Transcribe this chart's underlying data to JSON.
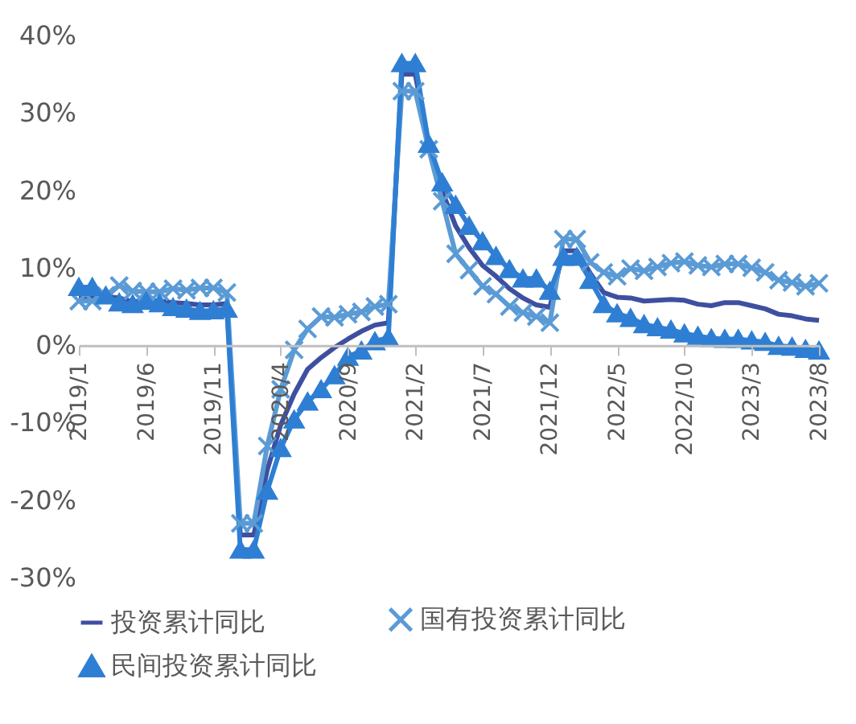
{
  "chart_data": {
    "type": "line",
    "categories": [
      "2019/1",
      null,
      null,
      null,
      null,
      "2019/6",
      null,
      null,
      null,
      null,
      "2019/11",
      null,
      null,
      null,
      null,
      "2020/4",
      null,
      null,
      null,
      null,
      "2020/9",
      null,
      null,
      null,
      null,
      "2021/2",
      null,
      null,
      null,
      null,
      "2021/7",
      null,
      null,
      null,
      null,
      "2021/12",
      null,
      null,
      null,
      null,
      "2022/5",
      null,
      null,
      null,
      null,
      "2022/10",
      null,
      null,
      null,
      null,
      "2023/3",
      null,
      null,
      null,
      null,
      "2023/8"
    ],
    "series": [
      {
        "name": "投资累计同比",
        "color": "#3f4fa0",
        "marker": "none",
        "values": [
          6.1,
          6.1,
          6.3,
          6.1,
          5.6,
          5.8,
          5.7,
          5.5,
          5.4,
          5.2,
          5.2,
          5.4,
          -24.5,
          -24.5,
          -16.1,
          -10.3,
          -6.3,
          -3.1,
          -1.6,
          -0.3,
          0.8,
          1.8,
          2.6,
          2.9,
          35.0,
          35.0,
          25.6,
          19.9,
          15.4,
          12.6,
          10.3,
          8.9,
          7.3,
          6.1,
          5.2,
          4.9,
          12.2,
          12.2,
          9.3,
          6.8,
          6.2,
          6.1,
          5.7,
          5.8,
          5.9,
          5.8,
          5.3,
          5.1,
          5.5,
          5.5,
          5.1,
          4.7,
          4.0,
          3.8,
          3.4,
          3.2
        ]
      },
      {
        "name": "国有投资累计同比",
        "color": "#5b9bd5",
        "marker": "cross",
        "values": [
          5.7,
          5.7,
          6.4,
          7.7,
          7.0,
          6.9,
          6.9,
          7.3,
          7.1,
          7.4,
          7.4,
          6.8,
          -23.0,
          -23.0,
          -13.0,
          -5.7,
          -0.6,
          2.1,
          3.7,
          3.6,
          4.0,
          4.3,
          5.0,
          5.3,
          32.8,
          32.8,
          25.3,
          18.6,
          11.8,
          9.7,
          7.6,
          6.6,
          5.0,
          4.2,
          3.7,
          2.9,
          13.7,
          13.7,
          10.7,
          9.4,
          8.9,
          9.9,
          9.6,
          10.1,
          10.6,
          10.8,
          10.3,
          10.1,
          10.5,
          10.5,
          10.0,
          9.4,
          8.4,
          8.1,
          7.6,
          8.0
        ]
      },
      {
        "name": "民间投资累计同比",
        "color": "#2e7fd4",
        "marker": "triangle",
        "values": [
          7.5,
          7.5,
          6.4,
          5.5,
          5.3,
          5.7,
          5.4,
          4.9,
          4.7,
          4.4,
          4.5,
          4.7,
          -26.4,
          -26.4,
          -18.8,
          -13.3,
          -9.6,
          -7.3,
          -5.7,
          -3.9,
          -1.5,
          -0.7,
          0.5,
          1.0,
          36.4,
          36.4,
          26.0,
          21.0,
          18.1,
          15.4,
          13.4,
          11.5,
          9.8,
          8.6,
          8.6,
          7.0,
          11.4,
          11.4,
          8.4,
          5.3,
          4.1,
          3.5,
          2.7,
          2.3,
          2.0,
          1.5,
          1.2,
          0.9,
          0.8,
          0.8,
          0.6,
          0.4,
          -0.1,
          -0.2,
          -0.5,
          -0.7
        ]
      }
    ],
    "ylim": [
      -30,
      40
    ],
    "yticks": [
      {
        "value": -30,
        "label": "-30%"
      },
      {
        "value": -20,
        "label": "-20%"
      },
      {
        "value": -10,
        "label": "-10%"
      },
      {
        "value": 0,
        "label": "0%"
      },
      {
        "value": 10,
        "label": "10%"
      },
      {
        "value": 20,
        "label": "20%"
      },
      {
        "value": 30,
        "label": "30%"
      },
      {
        "value": 40,
        "label": "40%"
      }
    ],
    "grid": false,
    "legend": "bottom",
    "line_style": "solid"
  }
}
